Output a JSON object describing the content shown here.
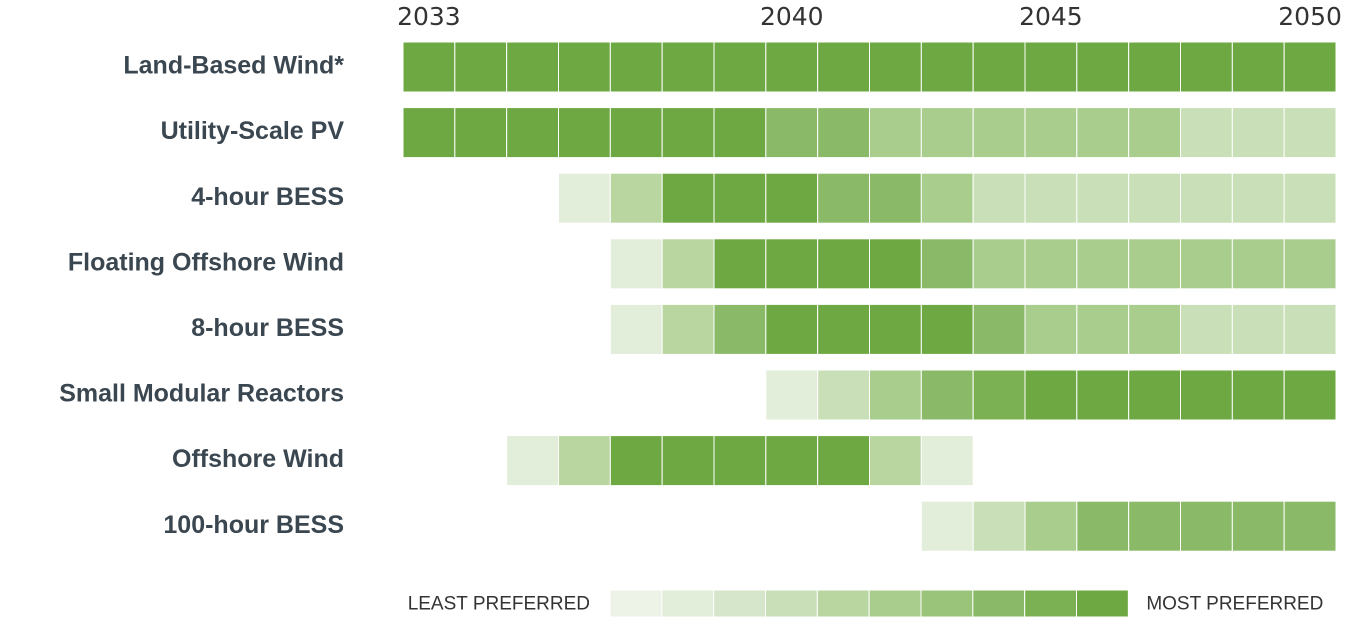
{
  "chart_data": {
    "type": "heatmap",
    "categories": [
      2033,
      null,
      null,
      null,
      null,
      null,
      null,
      2040,
      null,
      null,
      null,
      null,
      2045,
      null,
      null,
      null,
      null,
      2050
    ],
    "rows": [
      {
        "name": "Land-Based Wind*",
        "values": [
          10,
          10,
          10,
          10,
          10,
          10,
          10,
          10,
          10,
          10,
          10,
          10,
          10,
          10,
          10,
          10,
          10,
          10
        ]
      },
      {
        "name": "Utility-Scale PV",
        "values": [
          10,
          10,
          10,
          10,
          10,
          10,
          10,
          8,
          8,
          6,
          6,
          6,
          6,
          6,
          6,
          4,
          4,
          4
        ]
      },
      {
        "name": "4-hour BESS",
        "values": [
          null,
          null,
          null,
          2,
          5,
          10,
          10,
          10,
          8,
          8,
          6,
          4,
          4,
          4,
          4,
          4,
          4,
          4
        ]
      },
      {
        "name": "Floating Offshore Wind",
        "values": [
          null,
          null,
          null,
          null,
          2,
          5,
          10,
          10,
          10,
          10,
          8,
          6,
          6,
          6,
          6,
          6,
          6,
          6
        ]
      },
      {
        "name": "8-hour BESS",
        "values": [
          null,
          null,
          null,
          null,
          2,
          5,
          8,
          10,
          10,
          10,
          10,
          8,
          6,
          6,
          6,
          4,
          4,
          4
        ]
      },
      {
        "name": "Small Modular Reactors",
        "values": [
          null,
          null,
          null,
          null,
          null,
          null,
          null,
          2,
          4,
          6,
          8,
          9,
          10,
          10,
          10,
          10,
          10,
          10
        ]
      },
      {
        "name": "Offshore Wind",
        "values": [
          null,
          null,
          2,
          5,
          10,
          10,
          10,
          10,
          10,
          5,
          2,
          null,
          null,
          null,
          null,
          null,
          null,
          null
        ]
      },
      {
        "name": "100-hour BESS",
        "values": [
          null,
          null,
          null,
          null,
          null,
          null,
          null,
          null,
          null,
          null,
          2,
          4,
          6,
          8,
          8,
          8,
          8,
          8
        ]
      }
    ],
    "legend": {
      "low_label": "LEAST PREFERRED",
      "high_label": "MOST PREFERRED",
      "levels": [
        1,
        2,
        3,
        4,
        5,
        6,
        7,
        8,
        9,
        10
      ],
      "colors": [
        "#eef3e8",
        "#e2edda",
        "#d6e6cb",
        "#c8dfb7",
        "#b9d6a1",
        "#a9cd8d",
        "#99c47a",
        "#8aba67",
        "#7cb153",
        "#6ea842"
      ]
    }
  }
}
